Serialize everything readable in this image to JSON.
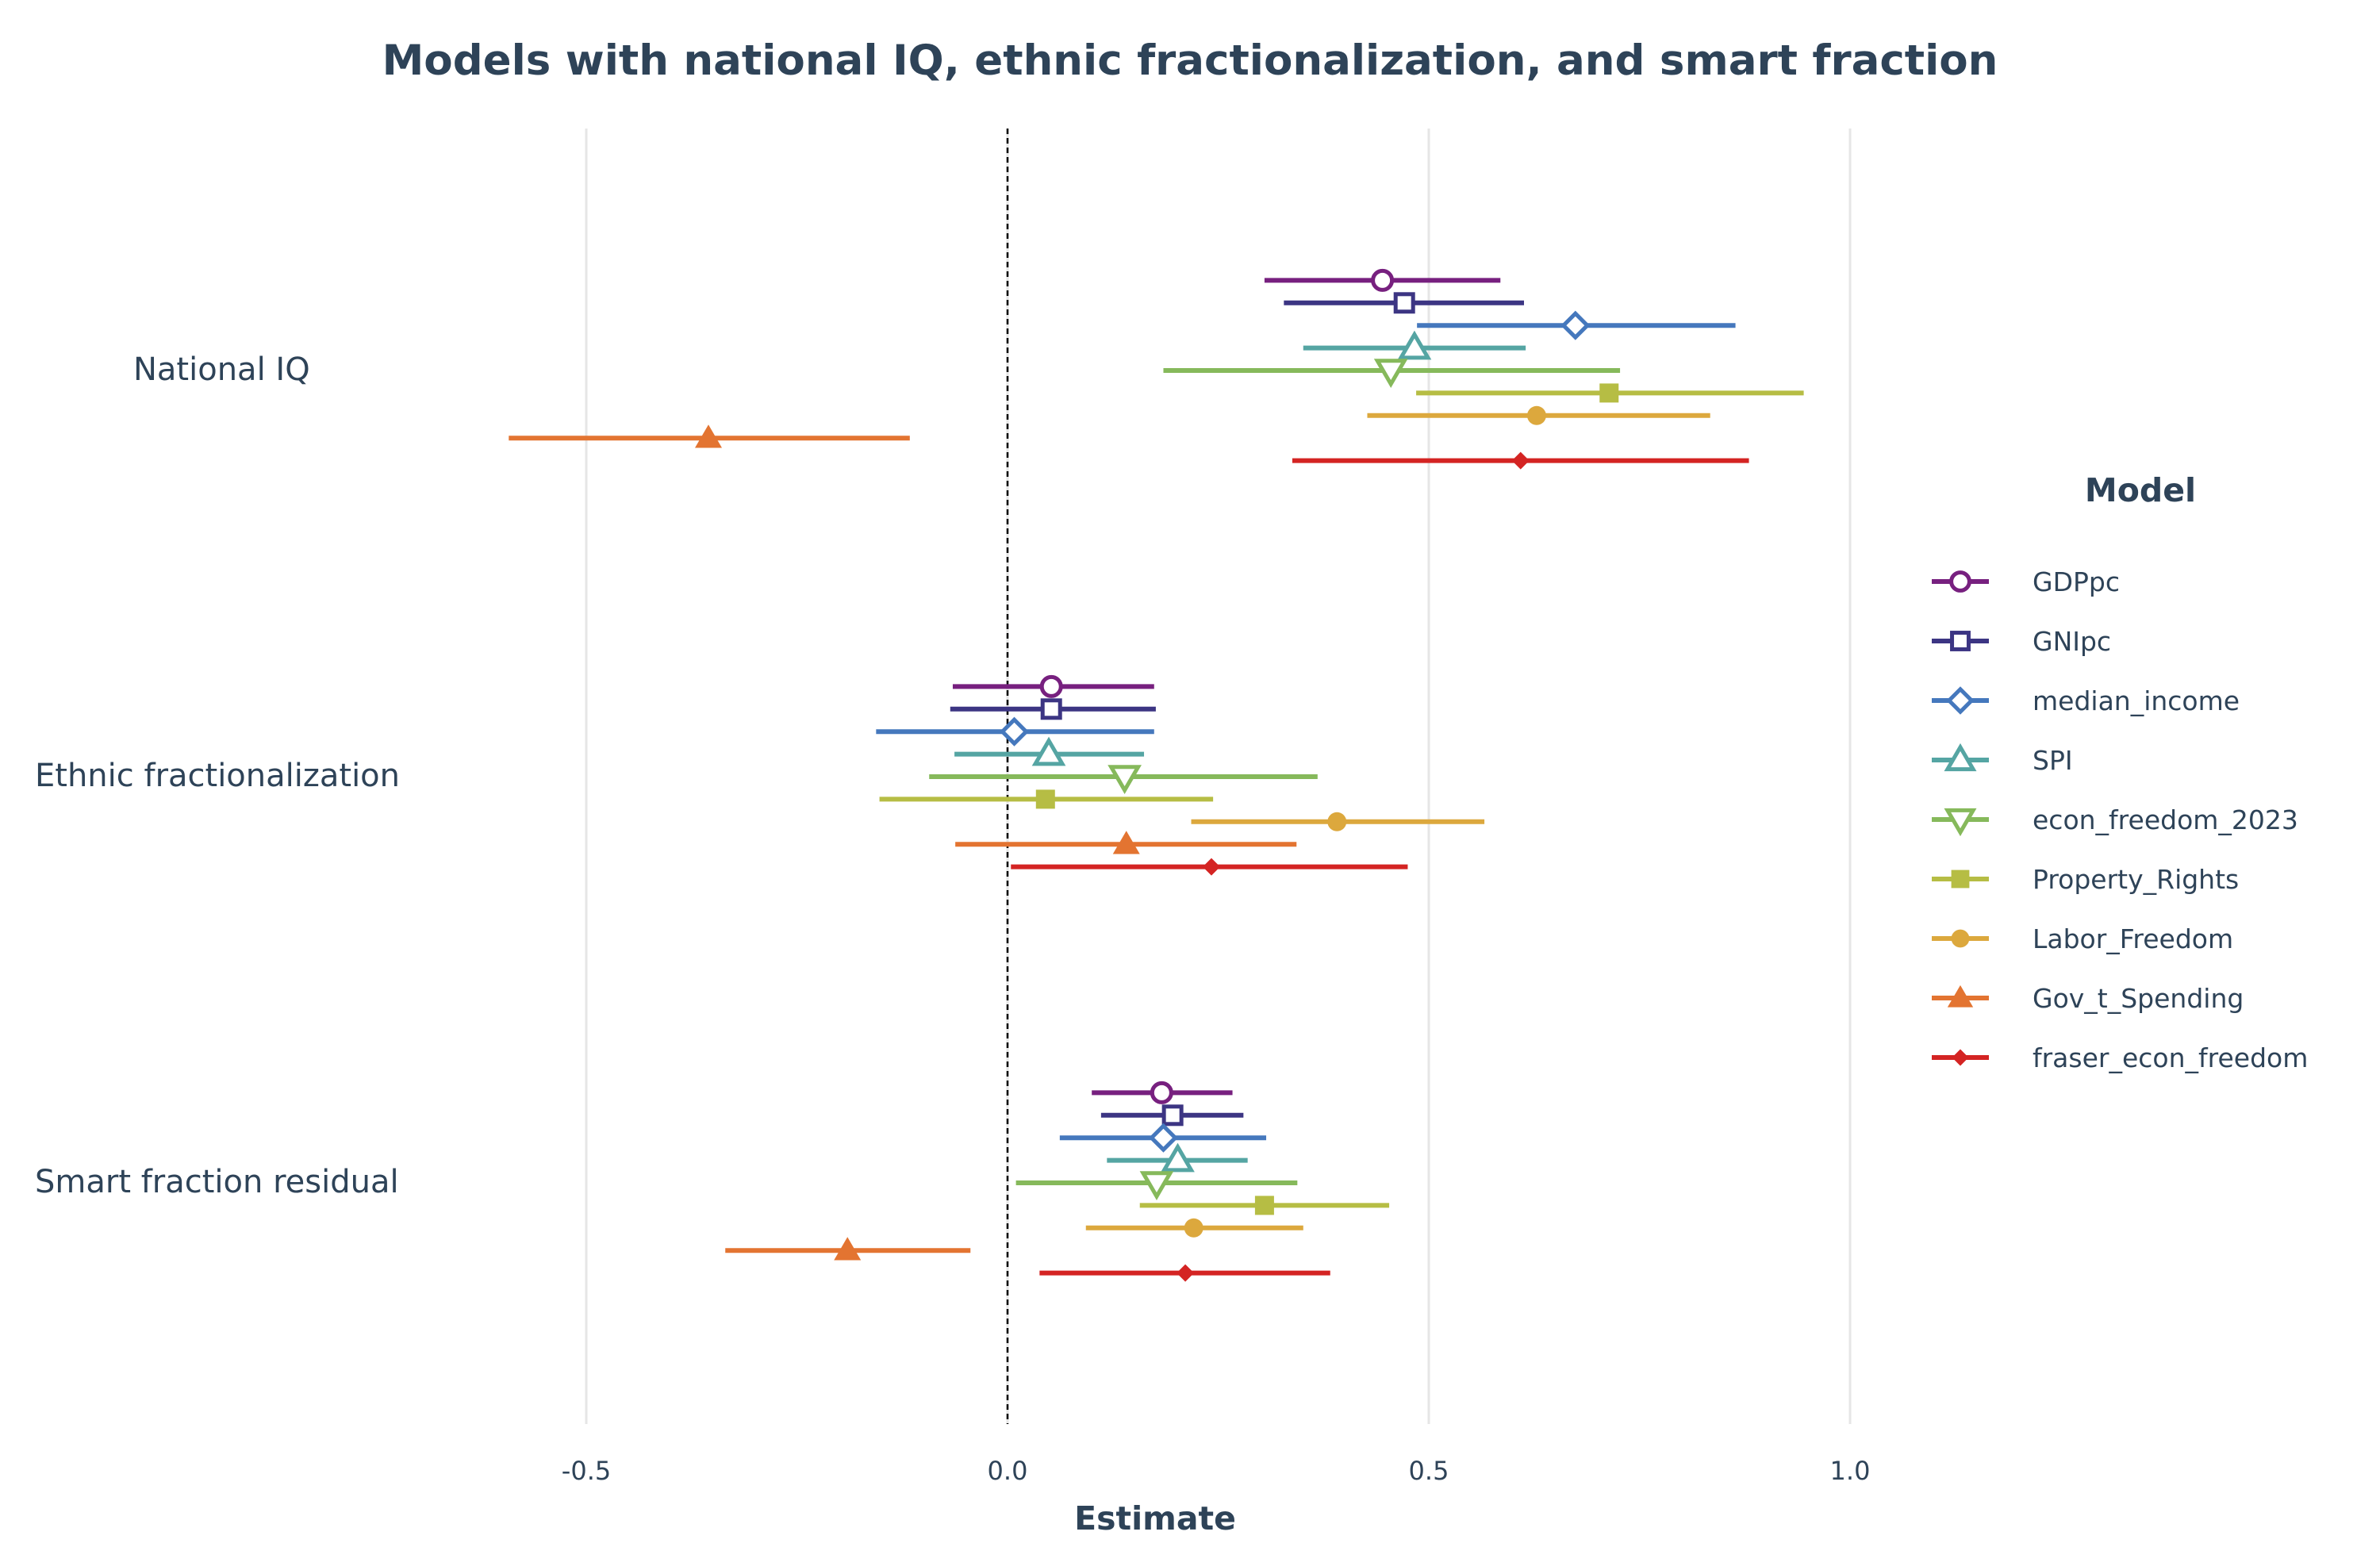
{
  "colors": {
    "text": "#2e4358",
    "grid": "#e6e6e6",
    "zero_line": "#000000",
    "series": [
      "#77207f",
      "#3c3583",
      "#4578bd",
      "#55a5a3",
      "#86b95b",
      "#b6bd44",
      "#dca83d",
      "#e37431",
      "#d42423"
    ]
  },
  "chart_data": {
    "type": "scatter",
    "title": "Models with national IQ, ethnic fractionalization, and smart fraction",
    "xlabel": "Estimate",
    "ylabel": "",
    "xlim": [
      -0.78,
      1.55
    ],
    "xticks": [
      -0.5,
      0.0,
      0.5,
      1.0
    ],
    "xtick_labels": [
      "-0.5",
      "0.0",
      "0.5",
      "1.0"
    ],
    "grid": "vertical",
    "reference_line": 0.0,
    "legend_title": "Model",
    "legend_position": "right",
    "categories": [
      "National IQ",
      "Ethnic fractionalization",
      "Smart fraction residual"
    ],
    "series": [
      {
        "name": "GDPpc",
        "marker": "circle-open",
        "estimate": [
          0.445,
          0.052,
          0.183
        ],
        "lower": [
          0.305,
          -0.065,
          0.1
        ],
        "upper": [
          0.585,
          0.174,
          0.267
        ]
      },
      {
        "name": "GNIpc",
        "marker": "square-open",
        "estimate": [
          0.471,
          0.052,
          0.196
        ],
        "lower": [
          0.328,
          -0.068,
          0.111
        ],
        "upper": [
          0.613,
          0.176,
          0.28
        ]
      },
      {
        "name": "median_income",
        "marker": "diamond-open",
        "estimate": [
          0.674,
          0.008,
          0.185
        ],
        "lower": [
          0.486,
          -0.156,
          0.062
        ],
        "upper": [
          0.864,
          0.174,
          0.307
        ]
      },
      {
        "name": "SPI",
        "marker": "triangle-up-open",
        "estimate": [
          0.483,
          0.049,
          0.202
        ],
        "lower": [
          0.351,
          -0.063,
          0.118
        ],
        "upper": [
          0.615,
          0.162,
          0.285
        ]
      },
      {
        "name": "econ_freedom_2023",
        "marker": "triangle-down-open",
        "estimate": [
          0.455,
          0.139,
          0.177
        ],
        "lower": [
          0.185,
          -0.093,
          0.01
        ],
        "upper": [
          0.727,
          0.368,
          0.344
        ]
      },
      {
        "name": "Property_Rights",
        "marker": "square",
        "estimate": [
          0.714,
          0.045,
          0.305
        ],
        "lower": [
          0.485,
          -0.152,
          0.157
        ],
        "upper": [
          0.945,
          0.244,
          0.453
        ]
      },
      {
        "name": "Labor_Freedom",
        "marker": "circle",
        "estimate": [
          0.628,
          0.391,
          0.221
        ],
        "lower": [
          0.427,
          0.218,
          0.093
        ],
        "upper": [
          0.834,
          0.566,
          0.351
        ]
      },
      {
        "name": "Gov_t_Spending",
        "marker": "triangle-up",
        "estimate": [
          -0.355,
          0.141,
          -0.19
        ],
        "lower": [
          -0.592,
          -0.062,
          -0.335
        ],
        "upper": [
          -0.116,
          0.343,
          -0.044
        ]
      },
      {
        "name": "fraser_econ_freedom",
        "marker": "diamond",
        "estimate": [
          0.609,
          0.242,
          0.211
        ],
        "lower": [
          0.338,
          0.004,
          0.038
        ],
        "upper": [
          0.88,
          0.475,
          0.383
        ]
      }
    ]
  }
}
